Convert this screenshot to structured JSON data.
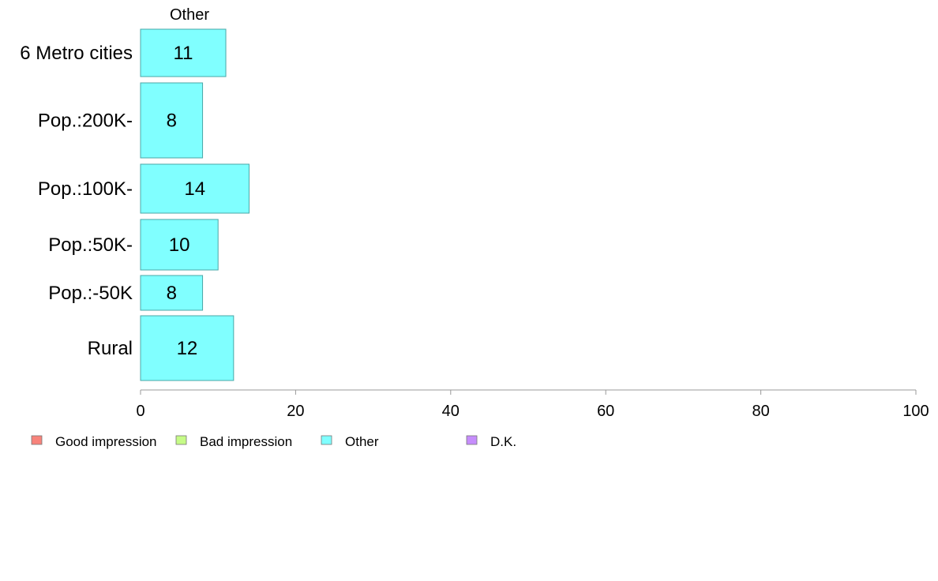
{
  "chart_data": {
    "type": "bar",
    "orientation": "horizontal",
    "panel_title": "Other",
    "categories": [
      "6 Metro cities",
      "Pop.:200K-",
      "Pop.:100K-",
      "Pop.:50K-",
      "Pop.:-50K",
      "Rural"
    ],
    "series": [
      {
        "name": "Other",
        "values": [
          11,
          8,
          14,
          10,
          8,
          12
        ]
      }
    ],
    "xlim": [
      0,
      100
    ],
    "xticks": [
      0,
      20,
      40,
      60,
      80,
      100
    ],
    "xlabel": "",
    "ylabel": "",
    "grid": false,
    "bar_color": "#80ffff",
    "bar_border_color": "#4aa7a7",
    "axis_color": "#999999",
    "legend": {
      "position": "bottom-left",
      "items": [
        {
          "label": "Good impression",
          "color": "#f8837b"
        },
        {
          "label": "Bad impression",
          "color": "#c6fb87"
        },
        {
          "label": "Other",
          "color": "#80ffff"
        },
        {
          "label": "D.K.",
          "color": "#c68dfc"
        }
      ]
    }
  }
}
